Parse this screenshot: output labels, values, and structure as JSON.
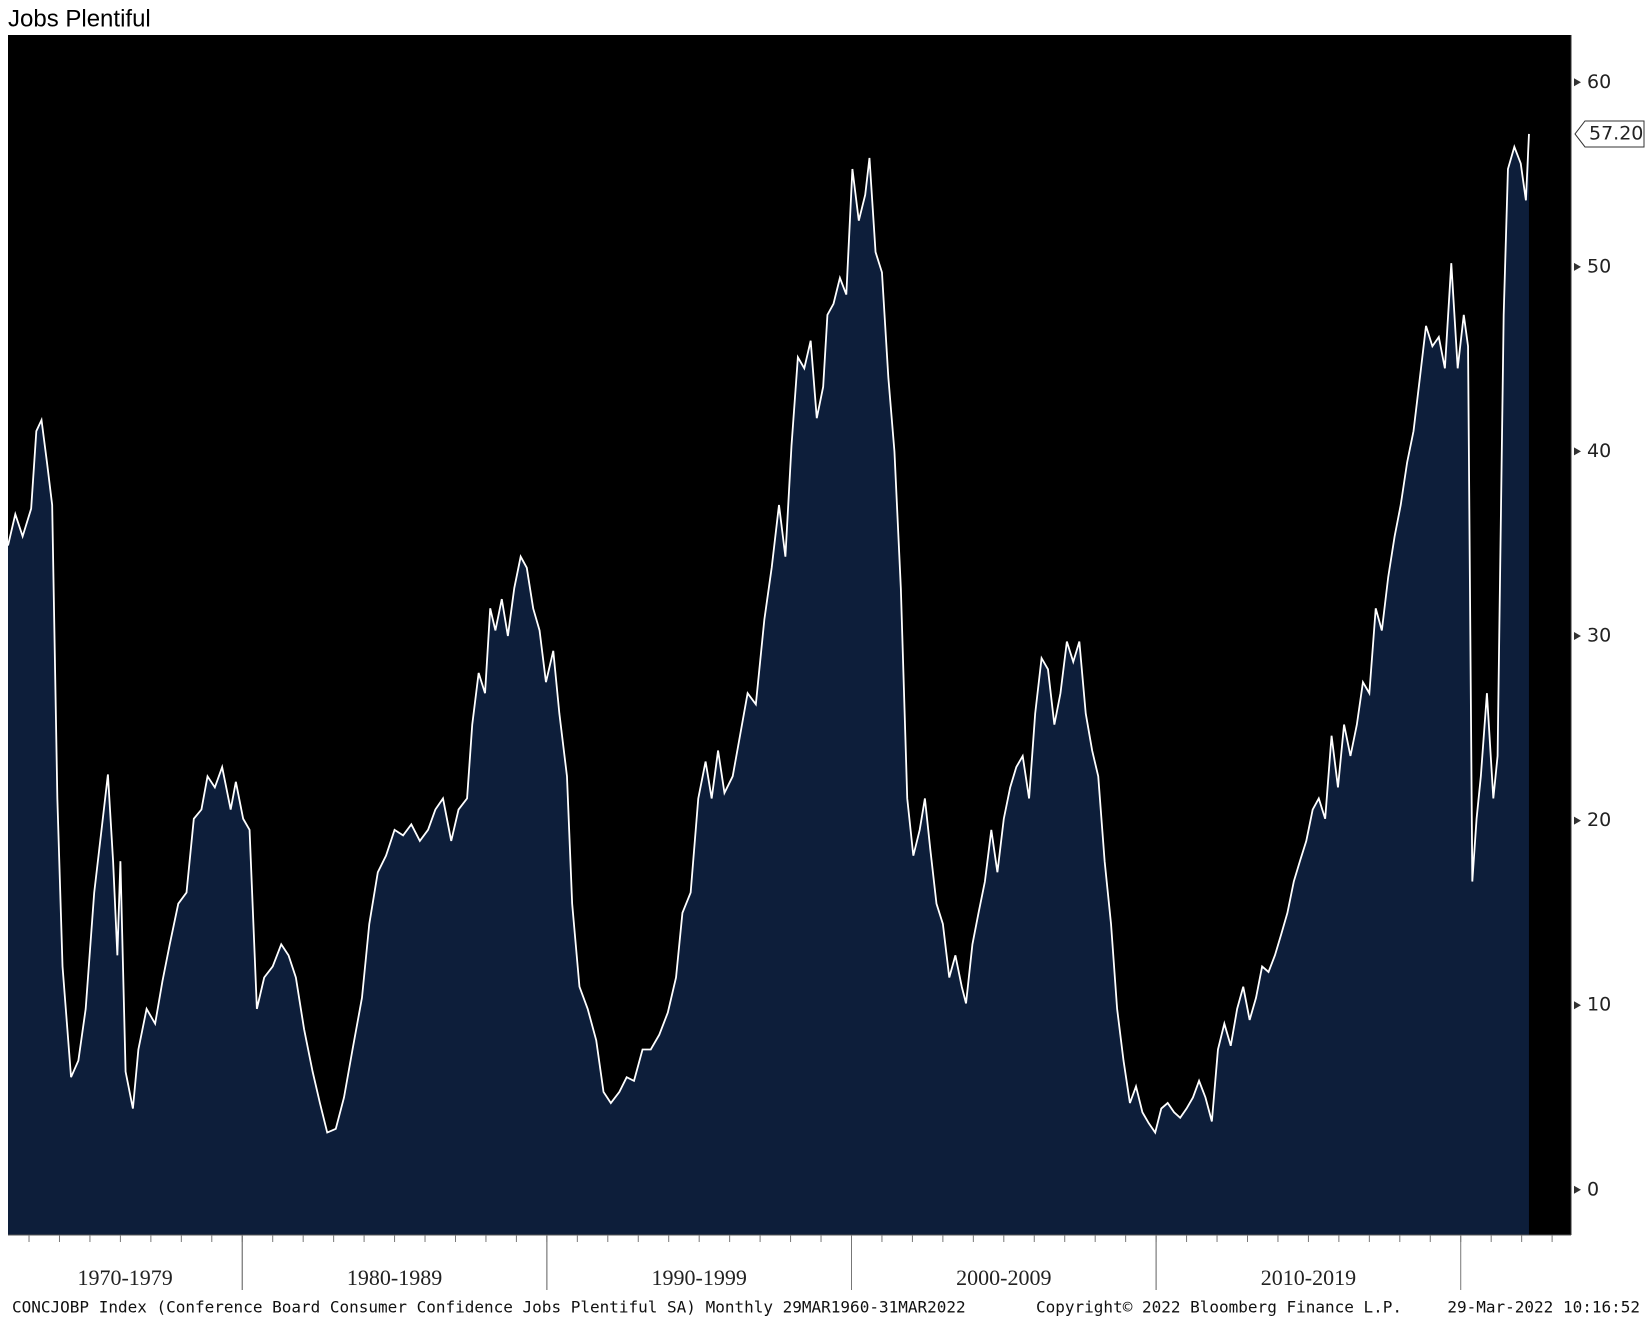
{
  "chart_data": {
    "type": "area",
    "title": "Jobs Plentiful",
    "footer_left": "CONCJOBP Index (Conference Board Consumer Confidence Jobs Plentiful SA)  Monthly 29MAR1960-31MAR2022",
    "footer_center": "Copyright© 2022 Bloomberg Finance L.P.",
    "footer_right": "29-Mar-2022 10:16:52",
    "fill_color": "#0d1e3a",
    "line_color": "#ffffff",
    "background": "#000000",
    "xlim": [
      1972.31,
      2023.62
    ],
    "ylim": [
      -2.45,
      62.56
    ],
    "yticks": [
      0,
      10,
      20,
      30,
      40,
      50,
      60
    ],
    "xticks": [
      {
        "value": 1975,
        "label": "1970-1979"
      },
      {
        "value": 1985,
        "label": "1980-1989"
      },
      {
        "value": 1995,
        "label": "1990-1999"
      },
      {
        "value": 2005,
        "label": "2000-2009"
      },
      {
        "value": 2015,
        "label": "2010-2019"
      }
    ],
    "annotations": [
      {
        "value": 57.2,
        "label": "57.20"
      }
    ],
    "x": [
      1972.31,
      1972.55,
      1972.79,
      1973.07,
      1973.24,
      1973.41,
      1973.59,
      1973.76,
      1973.93,
      1974.1,
      1974.38,
      1974.62,
      1974.86,
      1975.14,
      1975.38,
      1975.59,
      1975.76,
      1975.9,
      1976.0,
      1976.17,
      1976.41,
      1976.59,
      1976.86,
      1977.14,
      1977.38,
      1977.62,
      1977.9,
      1978.17,
      1978.41,
      1978.66,
      1978.86,
      1979.1,
      1979.34,
      1979.62,
      1979.79,
      1980.03,
      1980.24,
      1980.48,
      1980.72,
      1981.0,
      1981.28,
      1981.52,
      1981.76,
      1982.03,
      1982.31,
      1982.55,
      1982.79,
      1983.07,
      1983.34,
      1983.62,
      1983.93,
      1984.17,
      1984.45,
      1984.72,
      1985.0,
      1985.28,
      1985.55,
      1985.83,
      1986.1,
      1986.34,
      1986.59,
      1986.86,
      1987.1,
      1987.38,
      1987.55,
      1987.76,
      1987.97,
      1988.14,
      1988.31,
      1988.52,
      1988.72,
      1988.93,
      1989.14,
      1989.34,
      1989.55,
      1989.76,
      1989.97,
      1990.21,
      1990.41,
      1990.66,
      1990.83,
      1991.07,
      1991.34,
      1991.62,
      1991.86,
      1992.1,
      1992.38,
      1992.62,
      1992.86,
      1993.14,
      1993.41,
      1993.69,
      1993.97,
      1994.24,
      1994.45,
      1994.72,
      1994.97,
      1995.21,
      1995.41,
      1995.62,
      1995.83,
      1996.1,
      1996.34,
      1996.59,
      1996.86,
      1997.14,
      1997.38,
      1997.62,
      1997.83,
      1998.03,
      1998.24,
      1998.45,
      1998.66,
      1998.86,
      1999.07,
      1999.21,
      1999.41,
      1999.62,
      1999.83,
      2000.03,
      2000.24,
      2000.45,
      2000.59,
      2000.79,
      2001.0,
      2001.21,
      2001.41,
      2001.62,
      2001.83,
      2002.03,
      2002.24,
      2002.41,
      2002.59,
      2002.79,
      2003.0,
      2003.21,
      2003.41,
      2003.62,
      2003.76,
      2003.97,
      2004.17,
      2004.38,
      2004.59,
      2004.79,
      2005.0,
      2005.21,
      2005.41,
      2005.62,
      2005.83,
      2006.03,
      2006.24,
      2006.45,
      2006.66,
      2006.86,
      2007.07,
      2007.28,
      2007.48,
      2007.69,
      2007.9,
      2008.1,
      2008.31,
      2008.52,
      2008.72,
      2008.93,
      2009.14,
      2009.34,
      2009.55,
      2009.76,
      2009.97,
      2010.17,
      2010.38,
      2010.59,
      2010.79,
      2011.0,
      2011.21,
      2011.41,
      2011.62,
      2011.83,
      2012.03,
      2012.24,
      2012.45,
      2012.66,
      2012.86,
      2013.07,
      2013.28,
      2013.48,
      2013.69,
      2013.9,
      2014.1,
      2014.31,
      2014.52,
      2014.72,
      2014.93,
      2015.14,
      2015.34,
      2015.55,
      2015.76,
      2015.97,
      2016.17,
      2016.38,
      2016.59,
      2016.79,
      2017.0,
      2017.21,
      2017.41,
      2017.62,
      2017.83,
      2018.03,
      2018.24,
      2018.45,
      2018.66,
      2018.86,
      2019.07,
      2019.28,
      2019.48,
      2019.69,
      2019.9,
      2020.1,
      2020.24,
      2020.38,
      2020.52,
      2020.66,
      2020.86,
      2021.07,
      2021.21,
      2021.41,
      2021.55,
      2021.76,
      2021.97,
      2022.14,
      2022.24
    ],
    "values": [
      34.9,
      36.6,
      35.4,
      36.9,
      41.1,
      41.7,
      39.4,
      37.1,
      21.2,
      12.1,
      6.1,
      7.0,
      9.8,
      16.1,
      19.5,
      22.5,
      17.8,
      12.7,
      17.8,
      6.4,
      4.4,
      7.6,
      9.8,
      9.0,
      11.3,
      13.3,
      15.5,
      16.1,
      20.1,
      20.6,
      22.4,
      21.8,
      22.9,
      20.6,
      22.1,
      20.1,
      19.5,
      9.8,
      11.5,
      12.1,
      13.3,
      12.7,
      11.5,
      8.7,
      6.4,
      4.7,
      3.1,
      3.3,
      5.0,
      7.6,
      10.4,
      14.4,
      17.2,
      18.1,
      19.5,
      19.2,
      19.8,
      18.9,
      19.5,
      20.6,
      21.2,
      18.9,
      20.6,
      21.2,
      25.2,
      28.0,
      26.9,
      31.5,
      30.3,
      32.0,
      30.0,
      32.6,
      34.3,
      33.7,
      31.5,
      30.3,
      27.5,
      29.2,
      25.8,
      22.4,
      15.5,
      11.0,
      9.8,
      8.1,
      5.3,
      4.7,
      5.3,
      6.1,
      5.9,
      7.6,
      7.6,
      8.4,
      9.6,
      11.5,
      15.0,
      16.1,
      21.2,
      23.2,
      21.2,
      23.8,
      21.5,
      22.4,
      24.6,
      26.9,
      26.3,
      30.9,
      33.7,
      37.1,
      34.3,
      40.3,
      45.1,
      44.5,
      46.0,
      41.8,
      43.5,
      47.4,
      48.0,
      49.4,
      48.5,
      55.3,
      52.5,
      53.9,
      55.9,
      50.8,
      49.7,
      44.0,
      40.0,
      32.6,
      21.2,
      18.1,
      19.5,
      21.2,
      18.4,
      15.5,
      14.4,
      11.5,
      12.7,
      11.0,
      10.1,
      13.3,
      15.0,
      16.7,
      19.5,
      17.2,
      20.1,
      21.8,
      22.9,
      23.5,
      21.2,
      25.8,
      28.8,
      28.2,
      25.2,
      26.9,
      29.7,
      28.6,
      29.7,
      25.8,
      23.8,
      22.4,
      17.8,
      14.4,
      9.8,
      7.0,
      4.7,
      5.6,
      4.2,
      3.6,
      3.1,
      4.4,
      4.7,
      4.2,
      3.9,
      4.4,
      5.0,
      5.9,
      5.0,
      3.7,
      7.6,
      9.0,
      7.8,
      9.8,
      11.0,
      9.2,
      10.4,
      12.1,
      11.8,
      12.7,
      13.8,
      15.0,
      16.7,
      17.8,
      18.9,
      20.6,
      21.2,
      20.1,
      24.6,
      21.8,
      25.2,
      23.5,
      25.2,
      27.5,
      26.9,
      31.5,
      30.3,
      33.2,
      35.4,
      37.1,
      39.4,
      41.1,
      44.0,
      46.8,
      45.7,
      46.2,
      44.5,
      50.2,
      44.5,
      47.4,
      45.7,
      16.7,
      20.1,
      22.4,
      26.9,
      21.2,
      23.5,
      47.4,
      55.3,
      56.5,
      55.6,
      53.6,
      57.2
    ]
  }
}
